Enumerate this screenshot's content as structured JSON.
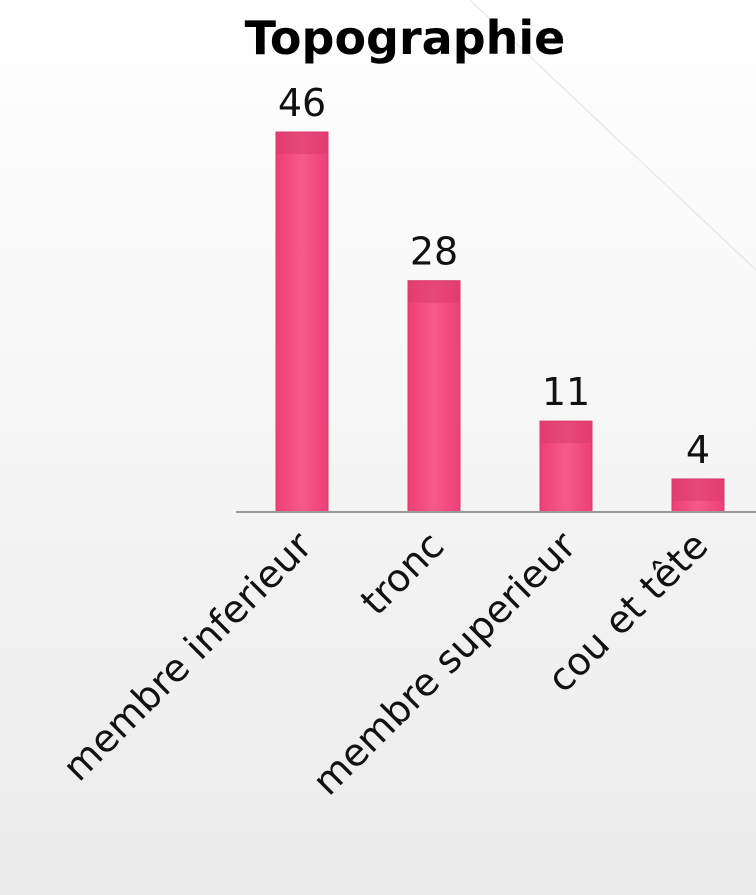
{
  "chart_data": {
    "type": "bar",
    "title": "Topographie",
    "xlabel": "",
    "ylabel": "",
    "categories": [
      "membre inferieur",
      "tronc",
      "membre superieur",
      "cou et tête"
    ],
    "values": [
      46,
      28,
      11,
      4
    ],
    "ylim": [
      0,
      50
    ],
    "grid": false,
    "legend": "none",
    "bar_color": "#f0497f",
    "bar_cap_color": "#d93a6c",
    "axis_color": "#9a9a9a"
  }
}
